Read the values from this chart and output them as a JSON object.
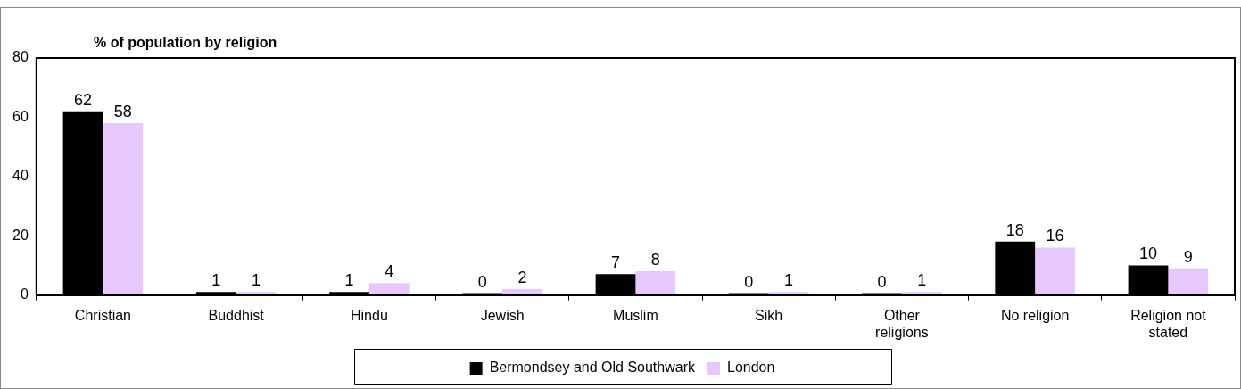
{
  "chart_data": {
    "type": "bar",
    "title": "% of population by religion",
    "categories": [
      "Christian",
      "Buddhist",
      "Hindu",
      "Jewish",
      "Muslim",
      "Sikh",
      "Other religions",
      "No religion",
      "Religion not stated"
    ],
    "series": [
      {
        "name": "Bermondsey and Old Southwark",
        "color": "#000000",
        "values": [
          62,
          1,
          1,
          0,
          7,
          0,
          0,
          18,
          10
        ]
      },
      {
        "name": "London",
        "color": "#e6c8ff",
        "values": [
          58,
          1,
          4,
          2,
          8,
          1,
          1,
          16,
          9
        ]
      }
    ],
    "ylim": [
      0,
      80
    ],
    "yticks": [
      0,
      20,
      40,
      60,
      80
    ],
    "grid": false,
    "legend": "bottom",
    "data_labels": true
  }
}
